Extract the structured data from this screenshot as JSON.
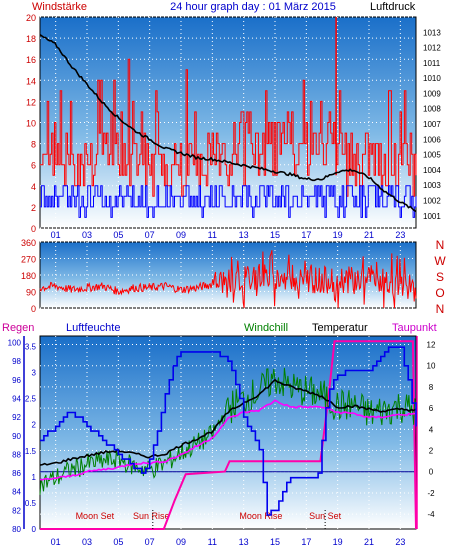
{
  "header": {
    "left_label": "Windstärke",
    "title": "24 hour graph day : 01 März 2015",
    "right_label": "Luftdruck"
  },
  "panel_labels": {
    "regen": "Regen",
    "luftfeuchte": "Luftfeuchte",
    "windchill": "Windchill",
    "temperatur": "Temperatur",
    "taupunkt": "Taupunkt"
  },
  "colors": {
    "wind_gust": "#ff0000",
    "wind_avg": "#0000ff",
    "pressure": "#000000",
    "wind_dir": "#ff0000",
    "humidity": "#0000ee",
    "windchill": "#008000",
    "temperature": "#000000",
    "dewpoint": "#ff00ff",
    "rain": "#ff00aa",
    "zero_line": "#000099",
    "regen_label": "#cc0099",
    "luftfeuchte_label": "#0000cc",
    "windchill_label": "#008000",
    "taupunkt_label": "#cc00cc",
    "header_left": "#cc0000",
    "title": "#0000cc",
    "sun_moon_label": "#cc0000"
  },
  "chart_data": [
    {
      "type": "line",
      "name": "wind-pressure",
      "x_ticks": [
        "01",
        "03",
        "05",
        "07",
        "09",
        "11",
        "13",
        "15",
        "17",
        "19",
        "21",
        "23"
      ],
      "x_range_hours": [
        0,
        24
      ],
      "left_axis": {
        "label": "Windstärke",
        "ticks": [
          "0",
          "2",
          "4",
          "6",
          "8",
          "10",
          "12",
          "14",
          "16",
          "18",
          "20"
        ],
        "range": [
          0,
          20
        ]
      },
      "right_axis": {
        "label": "Luftdruck",
        "ticks": [
          "1001",
          "1002",
          "1003",
          "1004",
          "1005",
          "1006",
          "1007",
          "1008",
          "1009",
          "1010",
          "1011",
          "1012",
          "1013"
        ],
        "range": [
          1000.2,
          1014
        ]
      },
      "pressure_points": [
        [
          0,
          1012.8
        ],
        [
          1,
          1012.2
        ],
        [
          2,
          1010.8
        ],
        [
          3,
          1009.6
        ],
        [
          4,
          1008.4
        ],
        [
          5,
          1007.4
        ],
        [
          6,
          1006.6
        ],
        [
          7,
          1006
        ],
        [
          8,
          1005.4
        ],
        [
          9,
          1005.1
        ],
        [
          10,
          1004.8
        ],
        [
          11,
          1004.7
        ],
        [
          12,
          1004.5
        ],
        [
          13,
          1004.3
        ],
        [
          14,
          1004.1
        ],
        [
          15,
          1003.9
        ],
        [
          16,
          1003.7
        ],
        [
          17,
          1003.4
        ],
        [
          18,
          1003.4
        ],
        [
          19,
          1003.9
        ],
        [
          20,
          1004
        ],
        [
          21,
          1003.5
        ],
        [
          22,
          1002.6
        ],
        [
          23,
          1001.9
        ],
        [
          24,
          1001.3
        ]
      ],
      "gust_baseline": 5.5,
      "avg_baseline": 2.5
    },
    {
      "type": "line",
      "name": "wind-direction",
      "y_ticks": [
        "0",
        "90",
        "180",
        "270",
        "360"
      ],
      "y_range": [
        0,
        360
      ],
      "compass": [
        "N",
        "W",
        "S",
        "O",
        "N"
      ],
      "direction_points": [
        [
          0,
          110
        ],
        [
          1,
          120
        ],
        [
          2,
          100
        ],
        [
          3,
          110
        ],
        [
          4,
          120
        ],
        [
          5,
          90
        ],
        [
          6,
          110
        ],
        [
          7,
          110
        ],
        [
          8,
          120
        ],
        [
          9,
          100
        ],
        [
          10,
          110
        ],
        [
          11,
          130
        ],
        [
          12,
          150
        ],
        [
          13,
          160
        ],
        [
          14,
          180
        ],
        [
          15,
          160
        ],
        [
          16,
          170
        ],
        [
          17,
          160
        ],
        [
          18,
          150
        ],
        [
          19,
          160
        ],
        [
          20,
          150
        ],
        [
          21,
          170
        ],
        [
          22,
          140
        ],
        [
          23,
          130
        ],
        [
          24,
          100
        ]
      ]
    },
    {
      "type": "line",
      "name": "temperature-humidity",
      "x_ticks": [
        "01",
        "03",
        "05",
        "07",
        "09",
        "11",
        "13",
        "15",
        "17",
        "19",
        "21",
        "23"
      ],
      "x_range_hours": [
        0,
        24
      ],
      "regen_axis": {
        "ticks": [
          "0",
          "0.5",
          "1",
          "1.5",
          "2",
          "2.5",
          "3",
          "3.5"
        ],
        "range": [
          0,
          3.7
        ]
      },
      "humidity_axis": {
        "ticks": [
          "80",
          "82",
          "84",
          "86",
          "88",
          "90",
          "92",
          "94",
          "96",
          "98",
          "100"
        ],
        "range": [
          80,
          100.7
        ]
      },
      "temperature_axis": {
        "ticks": [
          "-4",
          "-2",
          "0",
          "2",
          "4",
          "6",
          "8",
          "10",
          "12"
        ],
        "range": [
          -5.4,
          12.8
        ]
      },
      "humidity_points": [
        [
          0,
          89.3
        ],
        [
          1,
          91.2
        ],
        [
          2,
          92.6
        ],
        [
          3,
          91
        ],
        [
          4,
          89.5
        ],
        [
          5,
          88
        ],
        [
          6,
          86.6
        ],
        [
          6.6,
          86
        ],
        [
          7,
          87.5
        ],
        [
          7.7,
          92
        ],
        [
          8.4,
          97.3
        ],
        [
          9,
          99.2
        ],
        [
          10,
          99.2
        ],
        [
          11,
          99
        ],
        [
          12,
          98.2
        ],
        [
          12.6,
          95
        ],
        [
          13,
          92
        ],
        [
          14,
          88.5
        ],
        [
          14.5,
          81.5
        ],
        [
          15,
          82
        ],
        [
          15.6,
          84.6
        ],
        [
          16,
          85.6
        ],
        [
          17,
          85.5
        ],
        [
          17.7,
          85.5
        ],
        [
          18.3,
          93.5
        ],
        [
          18.6,
          95.5
        ],
        [
          19,
          96.5
        ],
        [
          20,
          97
        ],
        [
          21,
          97
        ],
        [
          22,
          99.2
        ],
        [
          23,
          99.6
        ],
        [
          23.6,
          95
        ],
        [
          24,
          91.2
        ]
      ],
      "temperature_points": [
        [
          0,
          0.6
        ],
        [
          1,
          0.8
        ],
        [
          2,
          1.2
        ],
        [
          3,
          1.5
        ],
        [
          4,
          1.8
        ],
        [
          5,
          2.0
        ],
        [
          6,
          1.7
        ],
        [
          7,
          1.4
        ],
        [
          8,
          1.7
        ],
        [
          9,
          2.5
        ],
        [
          10,
          3.1
        ],
        [
          11,
          3.8
        ],
        [
          12,
          5.6
        ],
        [
          13,
          6.5
        ],
        [
          14,
          7.3
        ],
        [
          15,
          8.6
        ],
        [
          16,
          8.0
        ],
        [
          17,
          7.6
        ],
        [
          18,
          7.1
        ],
        [
          19,
          6.1
        ],
        [
          20,
          6.2
        ],
        [
          21,
          5.9
        ],
        [
          22,
          5.7
        ],
        [
          23,
          5.9
        ],
        [
          24,
          5.8
        ]
      ],
      "windchill_points": [
        [
          0,
          -1.2
        ],
        [
          1,
          -0.6
        ],
        [
          2,
          0.2
        ],
        [
          3,
          0.7
        ],
        [
          4,
          1.0
        ],
        [
          5,
          1.2
        ],
        [
          6,
          0.5
        ],
        [
          7,
          0.2
        ],
        [
          8,
          0.8
        ],
        [
          9,
          1.8
        ],
        [
          10,
          2.6
        ],
        [
          11,
          3.5
        ],
        [
          12,
          6.0
        ],
        [
          13,
          6.8
        ],
        [
          14,
          7.6
        ],
        [
          15,
          8.8
        ],
        [
          16,
          8.0
        ],
        [
          17,
          7.6
        ],
        [
          18,
          7.2
        ],
        [
          19,
          6.2
        ],
        [
          20,
          6.3
        ],
        [
          21,
          5.5
        ],
        [
          22,
          5.8
        ],
        [
          23,
          6.2
        ],
        [
          24,
          5.7
        ]
      ],
      "dewpoint_points": [
        [
          0,
          -0.8
        ],
        [
          1,
          -0.6
        ],
        [
          2,
          -0.4
        ],
        [
          3,
          0.0
        ],
        [
          4,
          0.2
        ],
        [
          5,
          0.4
        ],
        [
          6,
          0.8
        ],
        [
          7,
          0.8
        ],
        [
          8,
          1.0
        ],
        [
          9,
          1.6
        ],
        [
          10,
          2.4
        ],
        [
          11,
          3.2
        ],
        [
          12,
          5.0
        ],
        [
          13,
          5.6
        ],
        [
          14,
          5.8
        ],
        [
          15,
          6.7
        ],
        [
          16,
          6.1
        ],
        [
          17,
          6.1
        ],
        [
          18,
          6.1
        ],
        [
          19,
          5.6
        ],
        [
          20,
          5.5
        ],
        [
          21,
          5.1
        ],
        [
          22,
          5.2
        ],
        [
          23,
          5.4
        ],
        [
          24,
          5.4
        ]
      ],
      "rain_points": [
        [
          0,
          0
        ],
        [
          7.9,
          0
        ],
        [
          8.6,
          0.55
        ],
        [
          9.3,
          1.05
        ],
        [
          11.8,
          1.1
        ],
        [
          12.1,
          1.3
        ],
        [
          17.9,
          1.3
        ],
        [
          18.4,
          2.5
        ],
        [
          18.8,
          3.6
        ],
        [
          23.8,
          3.6
        ],
        [
          24,
          0
        ]
      ],
      "annotations": [
        {
          "text": "Moon Set",
          "hour": 3.5
        },
        {
          "text": "Sun Rise",
          "hour": 7.1
        },
        {
          "text": "Moon Rise",
          "hour": 14.1
        },
        {
          "text": "Sun Set",
          "hour": 18.2
        }
      ]
    }
  ]
}
